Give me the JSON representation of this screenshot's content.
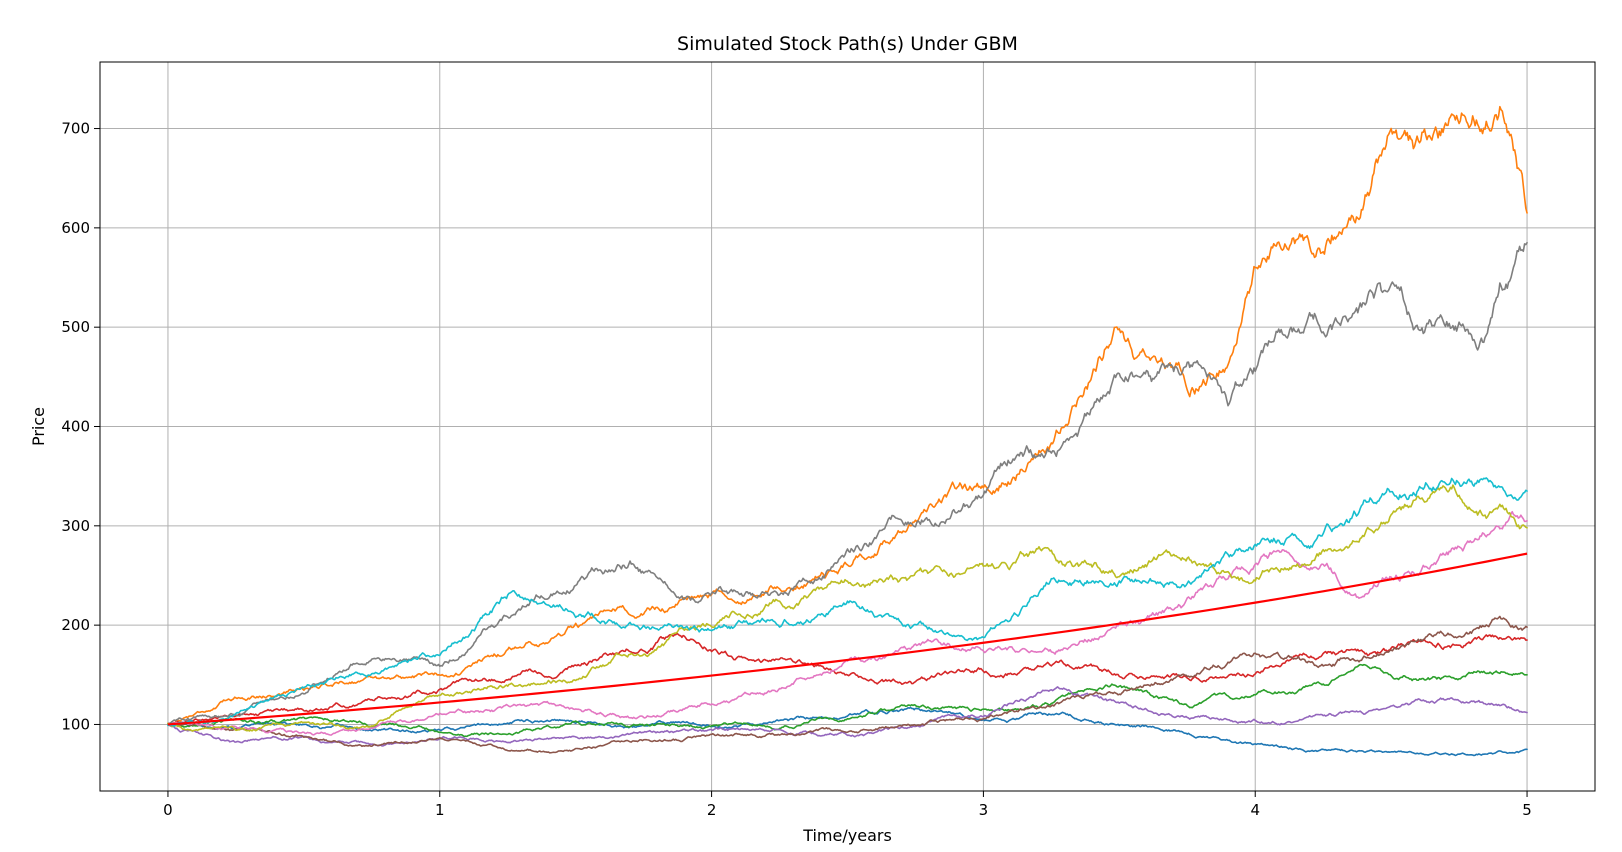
{
  "chart_data": {
    "type": "line",
    "title": "Simulated Stock Path(s) Under GBM",
    "xlabel": "Time/years",
    "ylabel": "Price",
    "xlim": [
      -0.25,
      5.25
    ],
    "ylim": [
      33,
      767
    ],
    "xticks": [
      0,
      1,
      2,
      3,
      4,
      5
    ],
    "yticks": [
      100,
      200,
      300,
      400,
      500,
      600,
      700
    ],
    "grid": true,
    "series": [
      {
        "color": "#1f77b4",
        "x": [
          0,
          0.25,
          0.5,
          0.75,
          1,
          1.25,
          1.5,
          1.75,
          2,
          2.25,
          2.5,
          2.75,
          3,
          3.25,
          3.5,
          3.75,
          4,
          4.25,
          4.5,
          4.75,
          5
        ],
        "y": [
          100,
          96,
          100,
          94,
          95,
          101,
          102,
          99,
          98,
          104,
          108,
          115,
          104,
          110,
          100,
          91,
          80,
          75,
          72,
          70,
          75
        ]
      },
      {
        "color": "#ff7f0e",
        "x": [
          0,
          0.25,
          0.5,
          0.75,
          1,
          1.25,
          1.5,
          1.75,
          2,
          2.25,
          2.5,
          2.75,
          3,
          3.25,
          3.5,
          3.6,
          3.75,
          3.9,
          4,
          4.25,
          4.4,
          4.5,
          4.6,
          4.75,
          4.9,
          5
        ],
        "y": [
          100,
          128,
          136,
          148,
          150,
          175,
          200,
          210,
          230,
          238,
          262,
          305,
          340,
          382,
          500,
          470,
          440,
          460,
          565,
          575,
          620,
          700,
          690,
          710,
          715,
          615
        ]
      },
      {
        "color": "#2ca02c",
        "x": [
          0,
          0.25,
          0.5,
          0.75,
          1,
          1.25,
          1.5,
          1.75,
          2,
          2.25,
          2.5,
          2.75,
          3,
          3.25,
          3.5,
          3.75,
          4,
          4.25,
          4.4,
          4.5,
          4.75,
          5
        ],
        "y": [
          100,
          105,
          107,
          98,
          92,
          90,
          103,
          100,
          98,
          95,
          105,
          120,
          115,
          120,
          138,
          120,
          130,
          140,
          160,
          150,
          145,
          150
        ]
      },
      {
        "color": "#d62728",
        "x": [
          0,
          0.25,
          0.5,
          0.75,
          1,
          1.25,
          1.5,
          1.75,
          1.9,
          2,
          2.25,
          2.5,
          2.75,
          3,
          3.25,
          3.5,
          3.75,
          4,
          4.25,
          4.5,
          4.75,
          5
        ],
        "y": [
          100,
          108,
          115,
          125,
          135,
          145,
          160,
          175,
          190,
          175,
          165,
          150,
          142,
          155,
          160,
          150,
          148,
          150,
          170,
          175,
          180,
          185
        ]
      },
      {
        "color": "#9467bd",
        "x": [
          0,
          0.25,
          0.5,
          0.75,
          1,
          1.25,
          1.5,
          1.75,
          2,
          2.25,
          2.5,
          2.75,
          3,
          3.25,
          3.5,
          3.75,
          4,
          4.25,
          4.5,
          4.75,
          5
        ],
        "y": [
          100,
          82,
          88,
          80,
          85,
          82,
          88,
          92,
          95,
          95,
          90,
          98,
          108,
          135,
          122,
          108,
          105,
          110,
          118,
          125,
          112
        ]
      },
      {
        "color": "#8c564b",
        "x": [
          0,
          0.25,
          0.5,
          0.75,
          1,
          1.25,
          1.5,
          1.75,
          2,
          2.25,
          2.5,
          2.75,
          3,
          3.25,
          3.5,
          3.75,
          4,
          4.25,
          4.5,
          4.75,
          4.9,
          5
        ],
        "y": [
          100,
          95,
          88,
          78,
          86,
          74,
          75,
          84,
          90,
          90,
          92,
          100,
          105,
          118,
          130,
          150,
          172,
          160,
          175,
          188,
          208,
          198
        ]
      },
      {
        "color": "#e377c2",
        "x": [
          0,
          0.25,
          0.5,
          0.75,
          1,
          1.25,
          1.5,
          1.75,
          2,
          2.25,
          2.5,
          2.75,
          3,
          3.25,
          3.5,
          3.75,
          4,
          4.25,
          4.4,
          4.5,
          4.75,
          5
        ],
        "y": [
          100,
          98,
          92,
          96,
          110,
          120,
          115,
          108,
          120,
          135,
          165,
          180,
          175,
          175,
          200,
          225,
          260,
          262,
          228,
          250,
          280,
          305
        ]
      },
      {
        "color": "#7f7f7f",
        "x": [
          0,
          0.25,
          0.5,
          0.75,
          1,
          1.25,
          1.5,
          1.7,
          1.9,
          2,
          2.25,
          2.5,
          2.75,
          3,
          3.1,
          3.25,
          3.5,
          3.75,
          3.9,
          4,
          4.25,
          4.45,
          4.6,
          4.75,
          4.85,
          4.9,
          5
        ],
        "y": [
          100,
          110,
          132,
          165,
          160,
          210,
          240,
          262,
          225,
          230,
          230,
          275,
          300,
          330,
          365,
          375,
          455,
          460,
          425,
          460,
          495,
          540,
          500,
          500,
          490,
          540,
          585
        ]
      },
      {
        "color": "#bcbd22",
        "x": [
          0,
          0.25,
          0.5,
          0.75,
          1,
          1.25,
          1.5,
          1.75,
          2,
          2.25,
          2.5,
          2.75,
          3,
          3.25,
          3.5,
          3.75,
          4,
          4.25,
          4.5,
          4.75,
          4.85,
          5
        ],
        "y": [
          100,
          95,
          102,
          98,
          130,
          140,
          145,
          170,
          200,
          225,
          245,
          250,
          262,
          275,
          248,
          265,
          245,
          275,
          310,
          330,
          310,
          298
        ]
      },
      {
        "color": "#17becf",
        "x": [
          0,
          0.25,
          0.5,
          0.75,
          1,
          1.25,
          1.5,
          1.75,
          2,
          2.25,
          2.5,
          2.75,
          3,
          3.25,
          3.5,
          3.75,
          4,
          4.25,
          4.5,
          4.75,
          4.9,
          5
        ],
        "y": [
          100,
          110,
          138,
          150,
          170,
          228,
          210,
          198,
          195,
          200,
          222,
          200,
          188,
          245,
          242,
          240,
          280,
          290,
          335,
          345,
          340,
          335
        ]
      },
      {
        "color": "#ff0000",
        "mean": true,
        "x": [
          0,
          0.5,
          1,
          1.5,
          2,
          2.5,
          3,
          3.5,
          4,
          4.5,
          5
        ],
        "y": [
          100,
          110.5,
          122.1,
          135,
          149.2,
          164.9,
          182.2,
          201.4,
          222.6,
          246,
          272
        ]
      }
    ]
  }
}
